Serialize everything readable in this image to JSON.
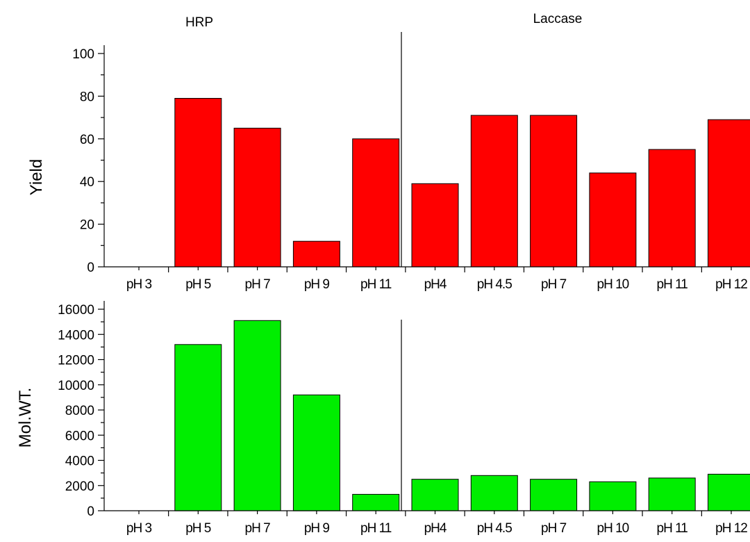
{
  "chart_data": [
    {
      "type": "bar",
      "ylabel": "Yield",
      "ylim": [
        0,
        100
      ],
      "yticks": [
        "0",
        "20",
        "40",
        "60",
        "80",
        "100"
      ],
      "categories": [
        "pH 3",
        "pH 5",
        "pH 7",
        "pH 9",
        "pH 11",
        "pH4",
        "pH 4.5",
        "pH 7",
        "pH 10",
        "pH 11",
        "pH 12"
      ],
      "values": [
        0,
        79,
        65,
        12,
        60,
        39,
        71,
        71,
        44,
        55,
        69
      ],
      "groups": [
        {
          "name": "HRP",
          "range": [
            0,
            4
          ]
        },
        {
          "name": "Laccase",
          "range": [
            5,
            10
          ]
        }
      ],
      "color": "#ff0000"
    },
    {
      "type": "bar",
      "ylabel": "Mol.WT.",
      "ylim": [
        0,
        16000
      ],
      "yticks": [
        "0",
        "2000",
        "4000",
        "6000",
        "8000",
        "10000",
        "12000",
        "14000",
        "16000"
      ],
      "categories": [
        "pH 3",
        "pH 5",
        "pH 7",
        "pH 9",
        "pH 11",
        "pH4",
        "pH 4.5",
        "pH 7",
        "pH 10",
        "pH 11",
        "pH 12"
      ],
      "values": [
        0,
        13200,
        15100,
        9200,
        1300,
        2500,
        2800,
        2500,
        2300,
        2600,
        2900
      ],
      "color": "#00ee00"
    }
  ]
}
